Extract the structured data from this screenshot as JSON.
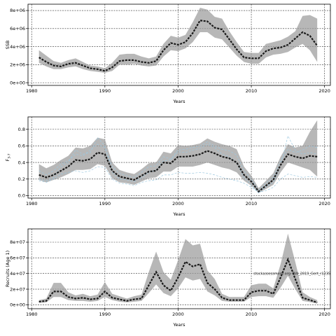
{
  "chart_data": [
    {
      "type": "area",
      "name": "ssb",
      "xlabel": "Years",
      "ylabel": "SSB",
      "xlim": [
        1979.5,
        2020.8
      ],
      "ylim": [
        -300000,
        8700000
      ],
      "xticks": [
        1980,
        1990,
        2000,
        2010,
        2020
      ],
      "xtick_labels": [
        "1980",
        "1990",
        "2000",
        "2010",
        "2020"
      ],
      "yticks": [
        0,
        2000000,
        4000000,
        6000000,
        8000000
      ],
      "ytick_labels": [
        "0e+00",
        "2e+06",
        "4e+06",
        "6e+06",
        "8e+06"
      ],
      "grid": true,
      "x": [
        1981,
        1982,
        1983,
        1984,
        1985,
        1986,
        1987,
        1988,
        1989,
        1990,
        1991,
        1992,
        1993,
        1994,
        1995,
        1996,
        1997,
        1998,
        1999,
        2000,
        2001,
        2002,
        2003,
        2004,
        2005,
        2006,
        2007,
        2008,
        2009,
        2010,
        2011,
        2012,
        2013,
        2014,
        2015,
        2016,
        2017,
        2018,
        2019
      ],
      "median": [
        2800000,
        2300000,
        1900000,
        1800000,
        2100000,
        2200000,
        1900000,
        1600000,
        1500000,
        1300000,
        1700000,
        2400000,
        2500000,
        2500000,
        2300000,
        2200000,
        2400000,
        3600000,
        4400000,
        4200000,
        4500000,
        5500000,
        6900000,
        6800000,
        6100000,
        5900000,
        4800000,
        3700000,
        2800000,
        2700000,
        2700000,
        3500000,
        3800000,
        3900000,
        4200000,
        4900000,
        5600000,
        5200000,
        4100000
      ],
      "upper": [
        3600000,
        3000000,
        2400000,
        2200000,
        2500000,
        2700000,
        2300000,
        1900000,
        1800000,
        1600000,
        2200000,
        3100000,
        3200000,
        3200000,
        2900000,
        2700000,
        2900000,
        4300000,
        5200000,
        5000000,
        5300000,
        6700000,
        8300000,
        8100000,
        7300000,
        7100000,
        5700000,
        4500000,
        3400000,
        3300000,
        3300000,
        4300000,
        4500000,
        4700000,
        5100000,
        5700000,
        7400000,
        7500000,
        7100000
      ],
      "lower": [
        2200000,
        1800000,
        1500000,
        1500000,
        1700000,
        1800000,
        1500000,
        1300000,
        1200000,
        1100000,
        1300000,
        2000000,
        2000000,
        2100000,
        1900000,
        1800000,
        1900000,
        2900000,
        3600000,
        3500000,
        3800000,
        4500000,
        5600000,
        5600000,
        5000000,
        4800000,
        3900000,
        3000000,
        2300000,
        2100000,
        2100000,
        2800000,
        3100000,
        3200000,
        3400000,
        3900000,
        4300000,
        3600000,
        2300000
      ]
    },
    {
      "type": "area",
      "name": "f",
      "xlabel": "Years",
      "ylabel": "F",
      "ylabel_sub": "3-7",
      "xlim": [
        1979.5,
        2020.8
      ],
      "ylim": [
        -0.03,
        0.95
      ],
      "xticks": [
        1980,
        1990,
        2000,
        2010,
        2020
      ],
      "xtick_labels": [
        "1980",
        "1990",
        "2000",
        "2010",
        "2020"
      ],
      "yticks": [
        0,
        0.2,
        0.4,
        0.6,
        0.8
      ],
      "ytick_labels": [
        "0.0",
        "0.2",
        "0.4",
        "0.6",
        "0.8"
      ],
      "grid": true,
      "x": [
        1981,
        1982,
        1983,
        1984,
        1985,
        1986,
        1987,
        1988,
        1989,
        1990,
        1991,
        1992,
        1993,
        1994,
        1995,
        1996,
        1997,
        1998,
        1999,
        2000,
        2001,
        2002,
        2003,
        2004,
        2005,
        2006,
        2007,
        2008,
        2009,
        2010,
        2011,
        2012,
        2013,
        2014,
        2015,
        2016,
        2017,
        2018,
        2019
      ],
      "median": [
        0.25,
        0.22,
        0.25,
        0.3,
        0.35,
        0.43,
        0.42,
        0.44,
        0.52,
        0.5,
        0.3,
        0.23,
        0.21,
        0.19,
        0.24,
        0.29,
        0.3,
        0.4,
        0.39,
        0.47,
        0.47,
        0.48,
        0.5,
        0.54,
        0.51,
        0.47,
        0.45,
        0.4,
        0.25,
        0.17,
        0.05,
        0.12,
        0.19,
        0.37,
        0.5,
        0.47,
        0.45,
        0.48,
        0.47
      ],
      "upper": [
        0.38,
        0.33,
        0.37,
        0.43,
        0.48,
        0.58,
        0.57,
        0.6,
        0.7,
        0.68,
        0.4,
        0.31,
        0.28,
        0.26,
        0.32,
        0.39,
        0.4,
        0.53,
        0.51,
        0.61,
        0.6,
        0.61,
        0.63,
        0.69,
        0.65,
        0.62,
        0.6,
        0.56,
        0.35,
        0.24,
        0.09,
        0.18,
        0.27,
        0.47,
        0.62,
        0.58,
        0.6,
        0.77,
        0.91
      ],
      "lower": [
        0.19,
        0.16,
        0.19,
        0.22,
        0.26,
        0.31,
        0.31,
        0.32,
        0.38,
        0.36,
        0.21,
        0.16,
        0.15,
        0.13,
        0.17,
        0.21,
        0.22,
        0.29,
        0.29,
        0.35,
        0.35,
        0.35,
        0.37,
        0.4,
        0.37,
        0.34,
        0.32,
        0.28,
        0.18,
        0.12,
        0.03,
        0.08,
        0.13,
        0.28,
        0.4,
        0.37,
        0.34,
        0.31,
        0.23
      ],
      "worms": [
        [
          0.2,
          0.18,
          0.22,
          0.35,
          0.4,
          0.55,
          0.5,
          0.52,
          0.7,
          0.6,
          0.28,
          0.2,
          0.19,
          0.17,
          0.22,
          0.28,
          0.31,
          0.42,
          0.43,
          0.53,
          0.52,
          0.55,
          0.57,
          0.62,
          0.58,
          0.5,
          0.47,
          0.4,
          0.22,
          0.13,
          0.03,
          0.11,
          0.16,
          0.36,
          0.72,
          0.55,
          0.5,
          0.52,
          0.5
        ],
        [
          0.18,
          0.16,
          0.2,
          0.26,
          0.28,
          0.3,
          0.28,
          0.3,
          0.35,
          0.34,
          0.2,
          0.15,
          0.14,
          0.12,
          0.16,
          0.18,
          0.19,
          0.25,
          0.25,
          0.28,
          0.27,
          0.27,
          0.28,
          0.27,
          0.25,
          0.22,
          0.2,
          0.18,
          0.15,
          0.1,
          0.04,
          0.06,
          0.1,
          0.2,
          0.26,
          0.24,
          0.22,
          0.23,
          0.22
        ],
        [
          0.3,
          0.25,
          0.3,
          0.38,
          0.42,
          0.5,
          0.48,
          0.55,
          0.62,
          0.58,
          0.35,
          0.27,
          0.24,
          0.22,
          0.28,
          0.35,
          0.36,
          0.47,
          0.44,
          0.55,
          0.56,
          0.58,
          0.6,
          0.65,
          0.6,
          0.56,
          0.54,
          0.49,
          0.3,
          0.2,
          0.06,
          0.15,
          0.22,
          0.42,
          0.56,
          0.52,
          0.55,
          0.6,
          0.58
        ]
      ]
    },
    {
      "type": "area",
      "name": "recruits",
      "xlabel": "Years",
      "ylabel": "Recruits (Age 1)",
      "xlim": [
        1979.5,
        2020.8
      ],
      "ylim": [
        -5000000,
        97000000
      ],
      "xticks": [
        1980,
        1990,
        2000,
        2010,
        2020
      ],
      "xtick_labels": [
        "1980",
        "1990",
        "2000",
        "2010",
        "2020"
      ],
      "yticks": [
        0,
        20000000,
        40000000,
        60000000,
        80000000
      ],
      "ytick_labels": [
        "0e+00",
        "2e+07",
        "4e+07",
        "6e+07",
        "8e+07"
      ],
      "grid": true,
      "x": [
        1981,
        1982,
        1983,
        1984,
        1985,
        1986,
        1987,
        1988,
        1989,
        1990,
        1991,
        1992,
        1993,
        1994,
        1995,
        1996,
        1997,
        1998,
        1999,
        2000,
        2001,
        2002,
        2003,
        2004,
        2005,
        2006,
        2007,
        2008,
        2009,
        2010,
        2011,
        2012,
        2013,
        2014,
        2015,
        2016,
        2017,
        2018,
        2019
      ],
      "median": [
        4000000,
        5000000,
        17000000,
        17000000,
        10000000,
        8000000,
        9000000,
        7000000,
        8000000,
        17000000,
        9000000,
        7000000,
        5000000,
        7000000,
        8000000,
        25000000,
        42000000,
        25000000,
        18000000,
        35000000,
        55000000,
        49000000,
        52000000,
        28000000,
        20000000,
        9000000,
        6000000,
        6000000,
        6000000,
        16000000,
        18000000,
        18000000,
        14000000,
        35000000,
        58000000,
        33000000,
        9000000,
        6000000,
        3000000
      ],
      "upper": [
        6000000,
        8000000,
        28000000,
        28000000,
        16000000,
        12000000,
        14000000,
        11000000,
        13000000,
        29000000,
        14000000,
        11000000,
        8000000,
        11000000,
        13000000,
        42000000,
        68000000,
        42000000,
        32000000,
        57000000,
        84000000,
        76000000,
        78000000,
        44000000,
        33000000,
        14000000,
        10000000,
        10000000,
        10000000,
        25000000,
        27000000,
        27000000,
        21000000,
        52000000,
        91000000,
        55000000,
        16000000,
        10000000,
        6000000
      ],
      "lower": [
        2500000,
        3000000,
        10000000,
        10000000,
        6000000,
        5000000,
        5000000,
        4000000,
        5000000,
        10000000,
        6000000,
        4000000,
        3000000,
        4000000,
        5000000,
        15000000,
        26000000,
        15000000,
        11000000,
        21000000,
        35000000,
        31000000,
        33000000,
        17000000,
        12000000,
        5000000,
        4000000,
        4000000,
        4000000,
        10000000,
        11000000,
        11000000,
        9000000,
        22000000,
        37000000,
        20000000,
        5000000,
        3500000,
        1500000
      ],
      "annotation": "stockassessment.org: BW_2019_Gert_r1235"
    }
  ]
}
